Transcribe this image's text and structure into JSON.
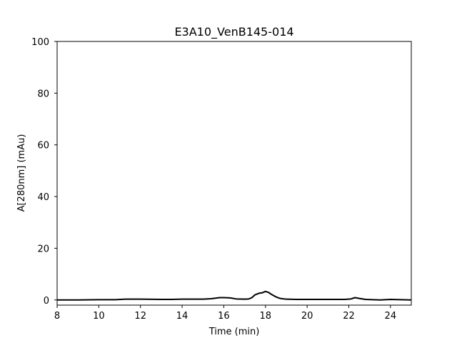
{
  "chart_data": {
    "type": "line",
    "title": "E3A10_VenB145-014",
    "xlabel": "Time (min)",
    "ylabel": "A[280nm] (mAu)",
    "xlim": [
      8,
      25
    ],
    "ylim": [
      -2,
      100
    ],
    "xticks": [
      8,
      10,
      12,
      14,
      16,
      18,
      20,
      22,
      24
    ],
    "yticks": [
      0,
      20,
      40,
      60,
      80,
      100
    ],
    "grid": false,
    "line_color": "#000000",
    "series": [
      {
        "x": [
          8.0,
          9.0,
          10.0,
          10.8,
          11.3,
          12.0,
          13.0,
          13.5,
          14.0,
          15.0,
          15.4,
          15.8,
          16.0,
          16.3,
          16.6,
          17.0,
          17.2,
          17.35,
          17.5,
          17.7,
          17.85,
          18.0,
          18.15,
          18.3,
          18.5,
          18.7,
          19.0,
          19.5,
          20.0,
          21.0,
          21.8,
          22.1,
          22.3,
          22.5,
          22.8,
          23.5,
          24.0,
          25.0
        ],
        "y": [
          0.0,
          0.0,
          0.1,
          0.1,
          0.3,
          0.3,
          0.2,
          0.2,
          0.3,
          0.3,
          0.5,
          0.9,
          0.9,
          0.8,
          0.4,
          0.3,
          0.4,
          0.9,
          2.0,
          2.6,
          2.8,
          3.3,
          2.9,
          2.1,
          1.2,
          0.6,
          0.3,
          0.2,
          0.2,
          0.2,
          0.2,
          0.4,
          0.9,
          0.6,
          0.2,
          0.0,
          0.2,
          0.0
        ]
      }
    ]
  }
}
